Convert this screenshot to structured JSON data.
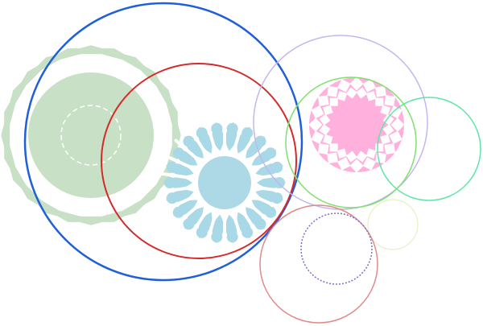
{
  "colors": {
    "background": "#ffffff",
    "green_star_fill": "#c8e0c5",
    "green_star_stroke": "#c8e0c5",
    "green_star_dash": "#ffffff",
    "blue_flower_petals": "#a9d8e6",
    "blue_flower_center": "#add8e6",
    "pink_rosette": "#ffb0dc",
    "pink_diamonds": "#ffffff",
    "ring_blue": "#1f5fd9",
    "ring_red": "#d42a2a",
    "ring_lavender": "#c3b6f0",
    "ring_lime": "#7ee26b",
    "ring_mint": "#5fe6a8",
    "ring_pale_yellow": "#e6f2c2",
    "ring_rose": "#e08a8a",
    "ring_purple": "#7a72c8"
  },
  "shapes": [
    {
      "kind": "green-star",
      "name": "green-star-ornament"
    },
    {
      "kind": "blue-flower",
      "name": "blue-flower-ornament"
    },
    {
      "kind": "pink-rosette",
      "name": "pink-rosette-ornament"
    },
    {
      "kind": "ring",
      "name": "ring-blue",
      "color_key": "ring_blue"
    },
    {
      "kind": "ring",
      "name": "ring-red",
      "color_key": "ring_red"
    },
    {
      "kind": "ring",
      "name": "ring-lavender",
      "color_key": "ring_lavender"
    },
    {
      "kind": "ring",
      "name": "ring-lime",
      "color_key": "ring_lime"
    },
    {
      "kind": "ring",
      "name": "ring-mint",
      "color_key": "ring_mint"
    },
    {
      "kind": "ring",
      "name": "ring-pale-yellow",
      "color_key": "ring_pale_yellow"
    },
    {
      "kind": "ring",
      "name": "ring-rose",
      "color_key": "ring_rose"
    },
    {
      "kind": "ring",
      "name": "ring-purple-dotted",
      "color_key": "ring_purple"
    }
  ]
}
